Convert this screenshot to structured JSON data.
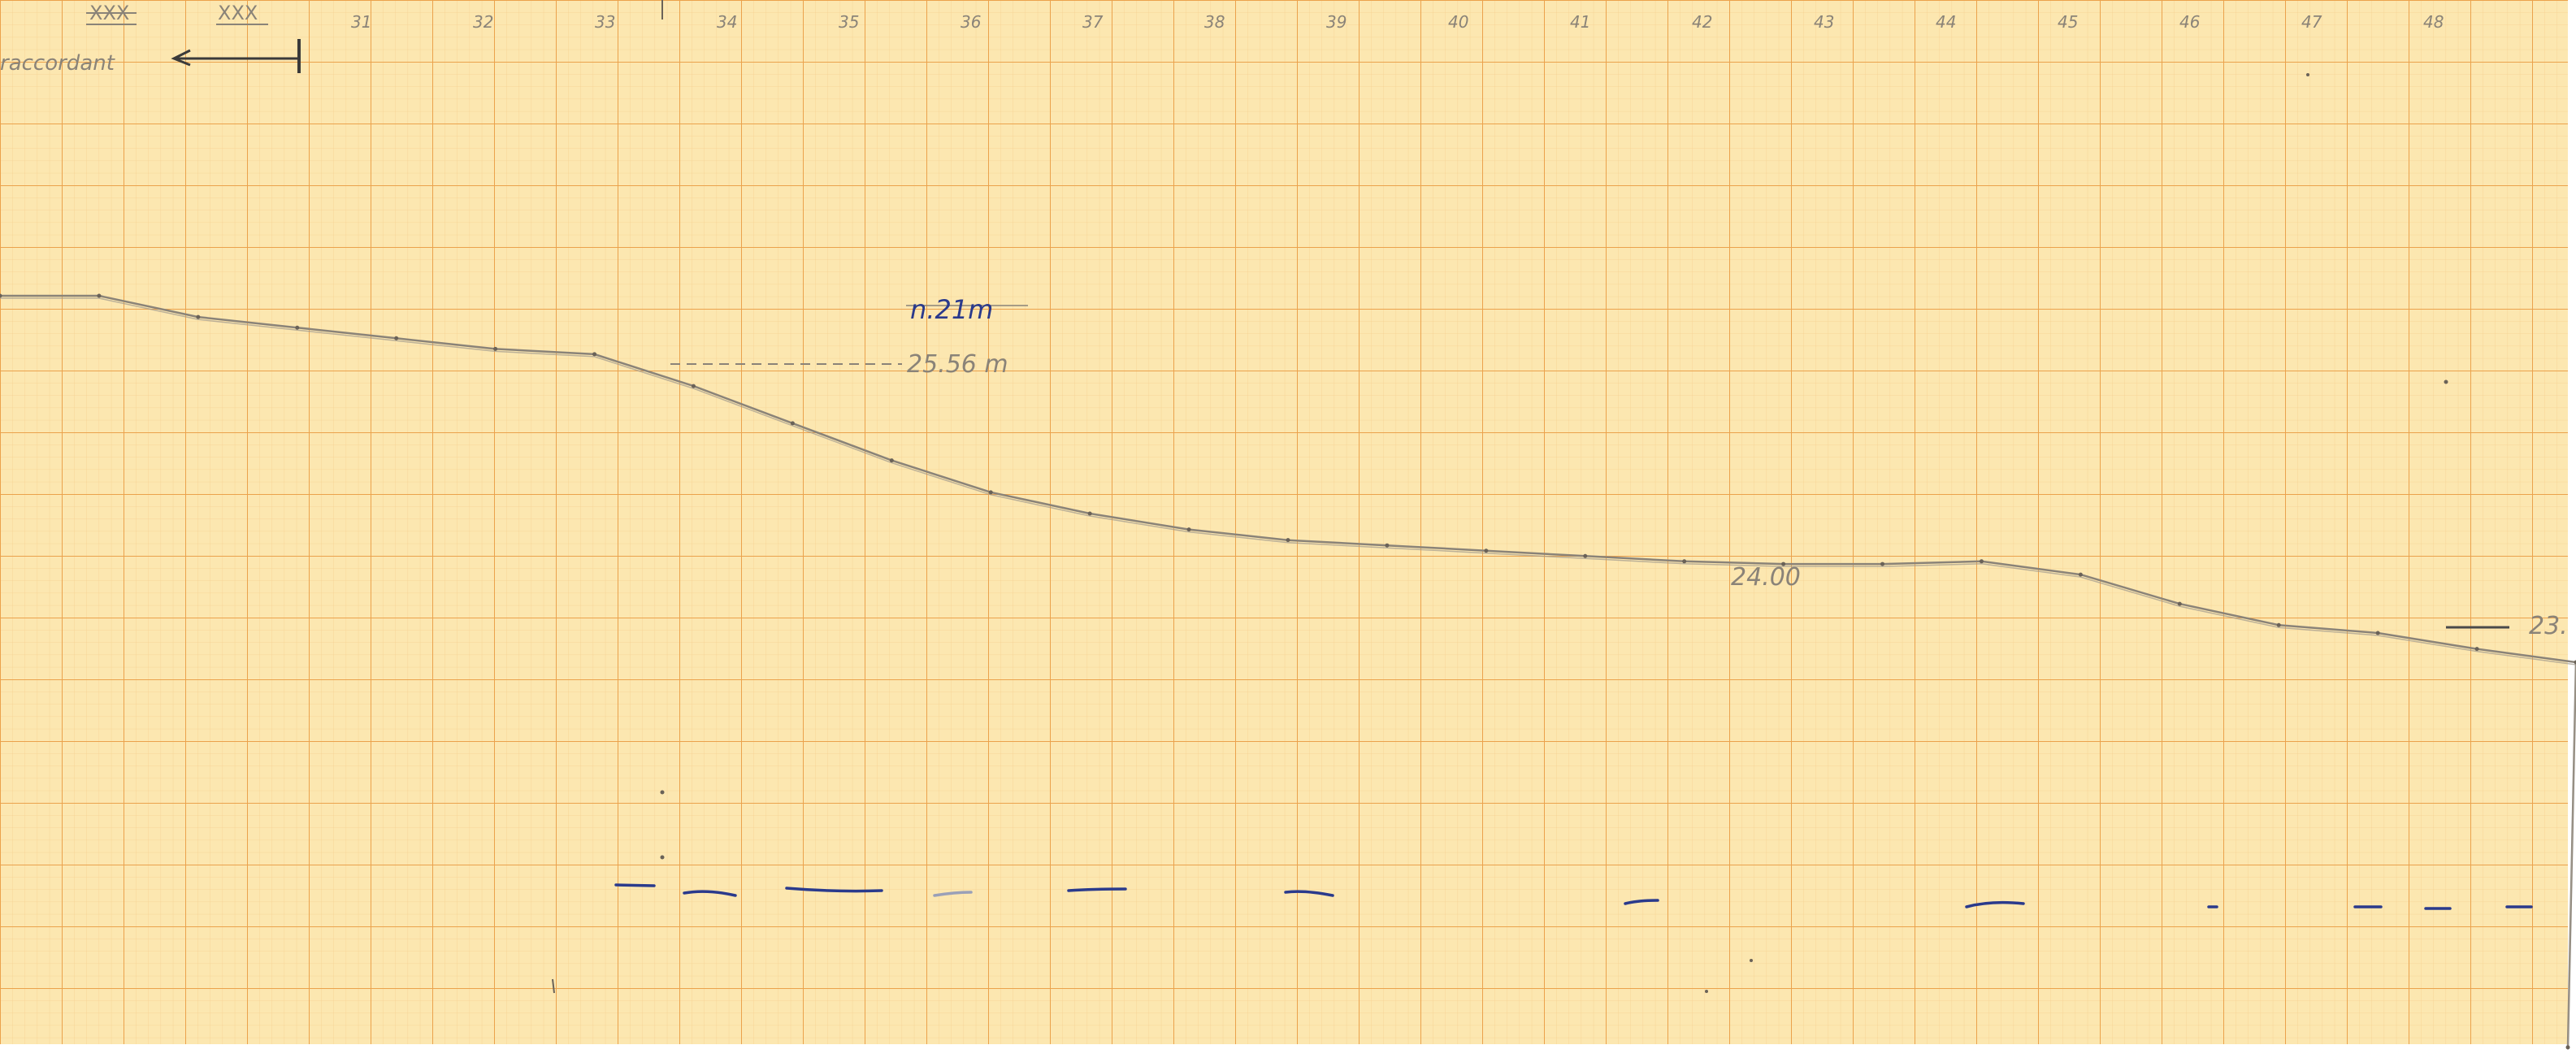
{
  "sheet": {
    "paper_color": "#fce7b0",
    "grid_minor_color": "#f4c784",
    "grid_major_color": "#eba24c",
    "pencil_color": "#8a8378",
    "ink_color": "#2a3a8c"
  },
  "header": {
    "label_left": "XXX",
    "label_right": "XXX",
    "scale_caption": "raccordant",
    "ruler_numbers": [
      "31",
      "32",
      "33",
      "34",
      "35",
      "36",
      "37",
      "38",
      "39",
      "40",
      "41",
      "42",
      "43",
      "44",
      "45",
      "46",
      "47",
      "48"
    ]
  },
  "notes": {
    "upper": "n.21m",
    "level_upper": "25.56 m",
    "level_mid": "24.00",
    "level_right": "23."
  },
  "profile": {
    "start_level": 25.78,
    "end_level": 22.95,
    "ground_levels": [
      25.78,
      25.78,
      25.7,
      25.66,
      25.62,
      25.58,
      25.56,
      25.44,
      25.3,
      25.16,
      25.04,
      24.96,
      24.9,
      24.86,
      24.84,
      24.82,
      24.8,
      24.78,
      24.77,
      24.77,
      24.78,
      24.73,
      24.62,
      24.54,
      24.51,
      24.45,
      24.4
    ]
  }
}
